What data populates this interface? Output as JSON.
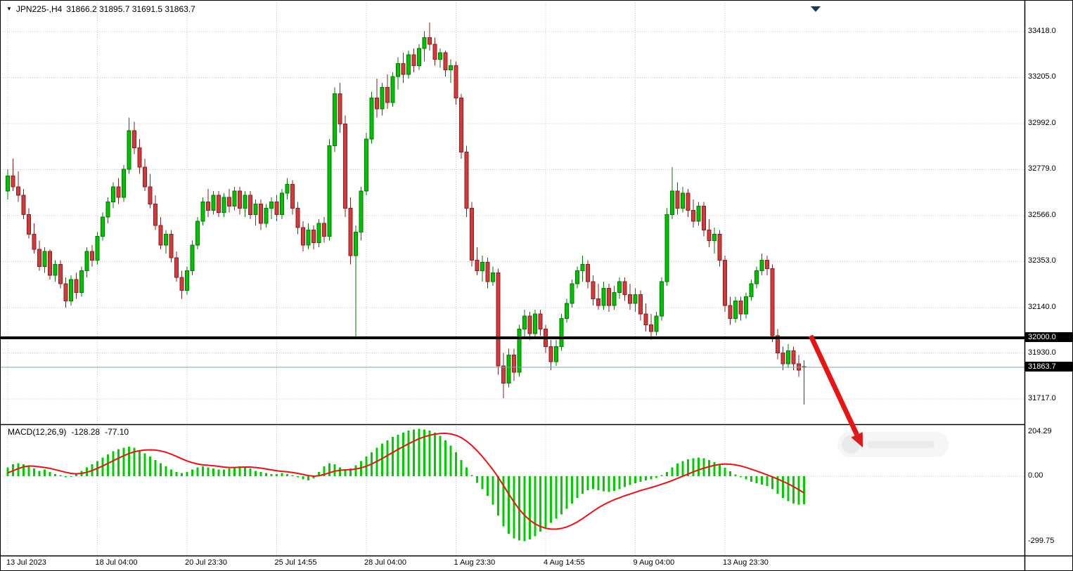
{
  "header": {
    "symbol": "JPN225-,H4",
    "ohlc": "31866.2 31895.7 31691.5 31863.7"
  },
  "price_axis": {
    "labels": [
      "33418.0",
      "33205.0",
      "32992.0",
      "32779.0",
      "32566.0",
      "32353.0",
      "32140.0",
      "31930.0",
      "31717.0"
    ],
    "badges": [
      "32000.0",
      "31863.7"
    ]
  },
  "time_axis": {
    "labels": [
      "13 Jul 2023",
      "18 Jul 04:00",
      "20 Jul 23:30",
      "25 Jul 14:55",
      "28 Jul 04:00",
      "1 Aug 23:30",
      "4 Aug 14:55",
      "9 Aug 04:00",
      "13 Aug 23:30"
    ],
    "indices": [
      0,
      17,
      34,
      51,
      68,
      85,
      102,
      119,
      136
    ]
  },
  "macd": {
    "label": "MACD(12,26,9)",
    "value": "-128.28",
    "signal_value": "-77.10",
    "axis_labels": [
      "204.29",
      "0.00",
      "-299.75"
    ]
  },
  "colors": {
    "bull": "#00c200",
    "bull_border": "#007a00",
    "bear": "#d23b3b",
    "bear_border": "#8f1d1d",
    "histogram": "#00cc00",
    "signal_line": "#ee1111",
    "support_line": "#000000",
    "current_price_line": "#7ea8a8",
    "grid": "#c4c4c4",
    "arrow": "#e81414",
    "separator": "#000000"
  },
  "chart_data": {
    "type": "candlestick",
    "symbol": "JPN225-",
    "timeframe": "H4",
    "last_ohlc": {
      "open": 31866.2,
      "high": 31895.7,
      "low": 31691.5,
      "close": 31863.7
    },
    "support_line_price": 32000.0,
    "current_price": 31863.7,
    "ylim": [
      31600,
      33490
    ],
    "macd_ylim": [
      -299.75,
      204.29
    ],
    "macd_last_values": {
      "macd": -128.28,
      "signal": -77.1
    },
    "candles": [
      [
        32680,
        32780,
        32640,
        32750
      ],
      [
        32750,
        32830,
        32680,
        32700
      ],
      [
        32700,
        32770,
        32630,
        32660
      ],
      [
        32660,
        32690,
        32550,
        32570
      ],
      [
        32570,
        32600,
        32460,
        32480
      ],
      [
        32480,
        32530,
        32390,
        32410
      ],
      [
        32410,
        32450,
        32310,
        32330
      ],
      [
        32330,
        32420,
        32300,
        32400
      ],
      [
        32400,
        32410,
        32270,
        32290
      ],
      [
        32290,
        32360,
        32260,
        32340
      ],
      [
        32340,
        32360,
        32230,
        32250
      ],
      [
        32250,
        32280,
        32140,
        32170
      ],
      [
        32170,
        32290,
        32150,
        32270
      ],
      [
        32270,
        32300,
        32180,
        32210
      ],
      [
        32210,
        32330,
        32190,
        32310
      ],
      [
        32310,
        32420,
        32280,
        32400
      ],
      [
        32400,
        32430,
        32330,
        32360
      ],
      [
        32360,
        32490,
        32340,
        32470
      ],
      [
        32470,
        32580,
        32450,
        32560
      ],
      [
        32560,
        32650,
        32530,
        32630
      ],
      [
        32630,
        32720,
        32600,
        32700
      ],
      [
        32700,
        32740,
        32620,
        32650
      ],
      [
        32650,
        32800,
        32630,
        32780
      ],
      [
        32780,
        33020,
        32760,
        32960
      ],
      [
        32960,
        33000,
        32850,
        32880
      ],
      [
        32880,
        32920,
        32760,
        32790
      ],
      [
        32790,
        32830,
        32680,
        32700
      ],
      [
        32700,
        32760,
        32600,
        32620
      ],
      [
        32620,
        32660,
        32500,
        32520
      ],
      [
        32520,
        32560,
        32410,
        32430
      ],
      [
        32430,
        32500,
        32390,
        32480
      ],
      [
        32480,
        32500,
        32350,
        32370
      ],
      [
        32370,
        32400,
        32260,
        32280
      ],
      [
        32280,
        32310,
        32180,
        32220
      ],
      [
        32220,
        32330,
        32200,
        32310
      ],
      [
        32310,
        32450,
        32290,
        32430
      ],
      [
        32430,
        32560,
        32410,
        32540
      ],
      [
        32540,
        32650,
        32520,
        32630
      ],
      [
        32630,
        32690,
        32560,
        32590
      ],
      [
        32590,
        32680,
        32570,
        32660
      ],
      [
        32660,
        32680,
        32560,
        32580
      ],
      [
        32580,
        32670,
        32560,
        32650
      ],
      [
        32650,
        32690,
        32580,
        32610
      ],
      [
        32610,
        32700,
        32590,
        32680
      ],
      [
        32680,
        32700,
        32570,
        32600
      ],
      [
        32600,
        32680,
        32560,
        32660
      ],
      [
        32660,
        32680,
        32550,
        32570
      ],
      [
        32570,
        32640,
        32520,
        32620
      ],
      [
        32620,
        32640,
        32500,
        32530
      ],
      [
        32530,
        32620,
        32510,
        32600
      ],
      [
        32600,
        32650,
        32550,
        32630
      ],
      [
        32630,
        32660,
        32540,
        32570
      ],
      [
        32570,
        32690,
        32550,
        32670
      ],
      [
        32670,
        32740,
        32640,
        32710
      ],
      [
        32710,
        32730,
        32570,
        32600
      ],
      [
        32600,
        32630,
        32480,
        32510
      ],
      [
        32510,
        32540,
        32400,
        32430
      ],
      [
        32430,
        32530,
        32410,
        32500
      ],
      [
        32500,
        32520,
        32410,
        32440
      ],
      [
        32440,
        32550,
        32420,
        32530
      ],
      [
        32530,
        32560,
        32440,
        32470
      ],
      [
        32470,
        32920,
        32450,
        32890
      ],
      [
        32890,
        33160,
        32860,
        33130
      ],
      [
        33130,
        33180,
        32950,
        32990
      ],
      [
        32990,
        33030,
        32560,
        32600
      ],
      [
        32600,
        32650,
        32340,
        32380
      ],
      [
        32380,
        32520,
        32000,
        32490
      ],
      [
        32490,
        32700,
        32450,
        32680
      ],
      [
        32680,
        32950,
        32660,
        32920
      ],
      [
        32920,
        33140,
        32900,
        33110
      ],
      [
        33110,
        33200,
        33020,
        33060
      ],
      [
        33060,
        33180,
        33030,
        33160
      ],
      [
        33160,
        33220,
        33060,
        33090
      ],
      [
        33090,
        33230,
        33070,
        33210
      ],
      [
        33210,
        33300,
        33150,
        33270
      ],
      [
        33270,
        33320,
        33180,
        33220
      ],
      [
        33220,
        33330,
        33200,
        33310
      ],
      [
        33310,
        33340,
        33230,
        33260
      ],
      [
        33260,
        33360,
        33240,
        33340
      ],
      [
        33340,
        33420,
        33280,
        33390
      ],
      [
        33390,
        33460,
        33330,
        33360
      ],
      [
        33360,
        33390,
        33260,
        33290
      ],
      [
        33290,
        33340,
        33250,
        33320
      ],
      [
        33320,
        33330,
        33210,
        33240
      ],
      [
        33240,
        33290,
        33180,
        33260
      ],
      [
        33260,
        33280,
        33080,
        33110
      ],
      [
        33110,
        33130,
        32830,
        32860
      ],
      [
        32860,
        32890,
        32560,
        32600
      ],
      [
        32600,
        32630,
        32330,
        32360
      ],
      [
        32360,
        32420,
        32290,
        32310
      ],
      [
        32310,
        32380,
        32260,
        32350
      ],
      [
        32350,
        32370,
        32230,
        32260
      ],
      [
        32260,
        32330,
        32240,
        32300
      ],
      [
        32300,
        32320,
        31830,
        31870
      ],
      [
        31870,
        31930,
        31720,
        31790
      ],
      [
        31790,
        31950,
        31770,
        31920
      ],
      [
        31920,
        31950,
        31800,
        31840
      ],
      [
        31840,
        32060,
        31820,
        32040
      ],
      [
        32040,
        32130,
        32000,
        32100
      ],
      [
        32100,
        32120,
        31990,
        32020
      ],
      [
        32020,
        32130,
        32000,
        32110
      ],
      [
        32110,
        32130,
        32010,
        32040
      ],
      [
        32040,
        32060,
        31930,
        31960
      ],
      [
        31960,
        31990,
        31850,
        31890
      ],
      [
        31890,
        31990,
        31870,
        31960
      ],
      [
        31960,
        32110,
        31940,
        32090
      ],
      [
        32090,
        32180,
        32070,
        32160
      ],
      [
        32160,
        32270,
        32140,
        32250
      ],
      [
        32250,
        32330,
        32230,
        32310
      ],
      [
        32310,
        32380,
        32260,
        32340
      ],
      [
        32340,
        32360,
        32230,
        32260
      ],
      [
        32260,
        32290,
        32150,
        32180
      ],
      [
        32180,
        32250,
        32130,
        32150
      ],
      [
        32150,
        32260,
        32130,
        32230
      ],
      [
        32230,
        32250,
        32120,
        32150
      ],
      [
        32150,
        32240,
        32130,
        32210
      ],
      [
        32210,
        32280,
        32180,
        32260
      ],
      [
        32260,
        32280,
        32170,
        32200
      ],
      [
        32200,
        32250,
        32130,
        32160
      ],
      [
        32160,
        32230,
        32120,
        32200
      ],
      [
        32200,
        32220,
        32080,
        32110
      ],
      [
        32110,
        32160,
        32030,
        32060
      ],
      [
        32060,
        32110,
        31990,
        32030
      ],
      [
        32030,
        32120,
        32010,
        32100
      ],
      [
        32100,
        32280,
        32080,
        32260
      ],
      [
        32260,
        32600,
        32240,
        32570
      ],
      [
        32570,
        32790,
        32550,
        32680
      ],
      [
        32680,
        32720,
        32570,
        32600
      ],
      [
        32600,
        32700,
        32580,
        32670
      ],
      [
        32670,
        32690,
        32560,
        32590
      ],
      [
        32590,
        32640,
        32510,
        32540
      ],
      [
        32540,
        32630,
        32520,
        32610
      ],
      [
        32610,
        32630,
        32470,
        32500
      ],
      [
        32500,
        32550,
        32420,
        32450
      ],
      [
        32450,
        32510,
        32390,
        32480
      ],
      [
        32480,
        32500,
        32330,
        32360
      ],
      [
        32360,
        32380,
        32120,
        32150
      ],
      [
        32150,
        32190,
        32060,
        32090
      ],
      [
        32090,
        32190,
        32070,
        32170
      ],
      [
        32170,
        32190,
        32080,
        32110
      ],
      [
        32110,
        32210,
        32090,
        32190
      ],
      [
        32190,
        32270,
        32170,
        32250
      ],
      [
        32250,
        32330,
        32230,
        32310
      ],
      [
        32310,
        32390,
        32290,
        32360
      ],
      [
        32360,
        32380,
        32290,
        32320
      ],
      [
        32320,
        32340,
        31980,
        32010
      ],
      [
        32010,
        32040,
        31900,
        31930
      ],
      [
        31930,
        31960,
        31850,
        31880
      ],
      [
        31880,
        31970,
        31860,
        31940
      ],
      [
        31940,
        31960,
        31850,
        31880
      ],
      [
        31880,
        31920,
        31820,
        31850
      ],
      [
        31866.2,
        31895.7,
        31691.5,
        31863.7
      ]
    ],
    "macd_histogram": [
      40,
      55,
      60,
      55,
      45,
      35,
      25,
      30,
      20,
      10,
      5,
      -5,
      0,
      10,
      25,
      40,
      55,
      70,
      85,
      100,
      115,
      125,
      130,
      135,
      130,
      120,
      105,
      90,
      75,
      60,
      45,
      30,
      20,
      15,
      20,
      30,
      40,
      45,
      40,
      35,
      30,
      30,
      35,
      40,
      45,
      40,
      35,
      25,
      20,
      15,
      10,
      10,
      15,
      10,
      5,
      -5,
      -15,
      -20,
      -10,
      20,
      45,
      60,
      55,
      40,
      30,
      35,
      50,
      70,
      90,
      110,
      130,
      150,
      165,
      180,
      190,
      200,
      210,
      215,
      218,
      215,
      210,
      200,
      185,
      165,
      140,
      110,
      75,
      40,
      5,
      -30,
      -60,
      -90,
      -130,
      -180,
      -230,
      -265,
      -285,
      -295,
      -298,
      -290,
      -275,
      -255,
      -235,
      -215,
      -195,
      -175,
      -150,
      -125,
      -100,
      -80,
      -65,
      -60,
      -65,
      -70,
      -72,
      -68,
      -60,
      -50,
      -40,
      -32,
      -25,
      -20,
      -15,
      -8,
      5,
      20,
      40,
      58,
      70,
      78,
      82,
      85,
      82,
      75,
      65,
      52,
      38,
      22,
      8,
      -5,
      -15,
      -25,
      -32,
      -38,
      -45,
      -60,
      -80,
      -100,
      -115,
      -125,
      -130,
      -128.28
    ],
    "macd_signal": [
      15,
      25,
      35,
      43,
      47,
      46,
      43,
      40,
      36,
      30,
      24,
      18,
      13,
      11,
      13,
      18,
      26,
      36,
      47,
      59,
      71,
      83,
      94,
      104,
      112,
      117,
      120,
      121,
      120,
      116,
      110,
      101,
      91,
      80,
      70,
      62,
      56,
      52,
      50,
      48,
      45,
      42,
      40,
      40,
      41,
      42,
      42,
      40,
      37,
      33,
      29,
      25,
      22,
      20,
      17,
      13,
      8,
      3,
      0,
      2,
      8,
      16,
      23,
      27,
      29,
      30,
      33,
      38,
      46,
      56,
      68,
      81,
      95,
      109,
      123,
      136,
      149,
      161,
      172,
      181,
      188,
      193,
      196,
      197,
      194,
      188,
      177,
      161,
      141,
      117,
      90,
      61,
      30,
      -5,
      -43,
      -82,
      -119,
      -152,
      -180,
      -202,
      -219,
      -231,
      -239,
      -243,
      -243,
      -240,
      -233,
      -223,
      -210,
      -195,
      -178,
      -161,
      -145,
      -131,
      -119,
      -108,
      -99,
      -90,
      -82,
      -74,
      -66,
      -59,
      -52,
      -45,
      -37,
      -29,
      -20,
      -10,
      0,
      10,
      20,
      29,
      37,
      44,
      50,
      54,
      56,
      55,
      52,
      47,
      40,
      32,
      24,
      15,
      6,
      -3,
      -13,
      -24,
      -35,
      -48,
      -62,
      -77.1
    ]
  },
  "annotations": {
    "arrow_direction": "down-right"
  }
}
